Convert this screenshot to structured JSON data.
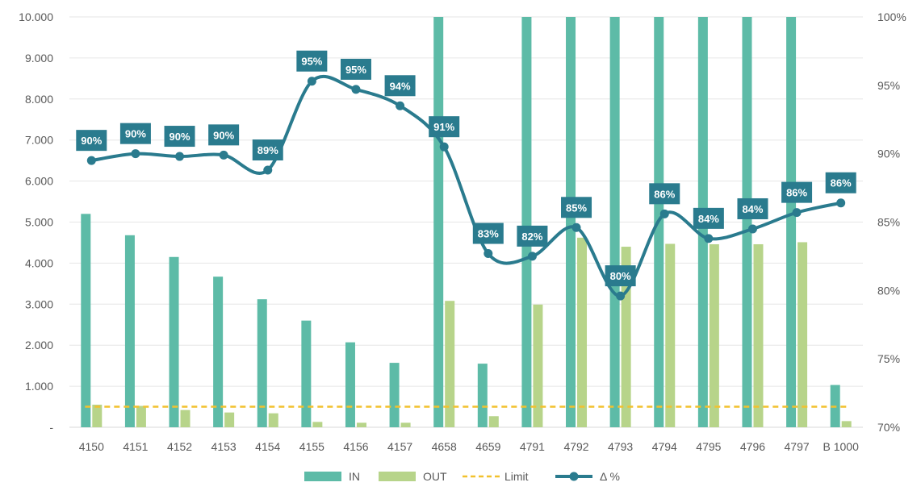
{
  "chart_data": {
    "type": "bar",
    "categories": [
      "4150",
      "4151",
      "4152",
      "4153",
      "4154",
      "4155",
      "4156",
      "4157",
      "4658",
      "4659",
      "4791",
      "4792",
      "4793",
      "4794",
      "4795",
      "4796",
      "4797",
      "B 1000"
    ],
    "series": [
      {
        "name": "IN",
        "type": "bar",
        "axis": "left",
        "color": "#5DBBA7",
        "values": [
          5200,
          4680,
          4150,
          3670,
          3120,
          2600,
          2070,
          1570,
          10000,
          1550,
          10000,
          10000,
          10000,
          10000,
          10000,
          10000,
          10000,
          1030
        ]
      },
      {
        "name": "OUT",
        "type": "bar",
        "axis": "left",
        "color": "#B7D48A",
        "values": [
          550,
          520,
          420,
          360,
          340,
          130,
          110,
          110,
          3080,
          270,
          2990,
          4620,
          4400,
          4470,
          4460,
          4460,
          4510,
          150
        ]
      },
      {
        "name": "Limit",
        "type": "line",
        "style": "dashed",
        "axis": "left",
        "color": "#F2C12E",
        "values": [
          500,
          500,
          500,
          500,
          500,
          500,
          500,
          500,
          500,
          500,
          500,
          500,
          500,
          500,
          500,
          500,
          500,
          500
        ]
      },
      {
        "name": "Δ %",
        "type": "line",
        "markers": true,
        "axis": "right",
        "color": "#2A7B8E",
        "values": [
          89.5,
          90.0,
          89.8,
          89.9,
          88.8,
          95.3,
          94.7,
          93.5,
          90.5,
          82.7,
          82.5,
          84.6,
          79.6,
          85.6,
          83.8,
          84.5,
          85.7,
          86.4
        ],
        "labels": [
          "90%",
          "90%",
          "90%",
          "90%",
          "89%",
          "95%",
          "95%",
          "94%",
          "91%",
          "83%",
          "82%",
          "85%",
          "80%",
          "86%",
          "84%",
          "84%",
          "86%",
          "86%"
        ]
      }
    ],
    "y_left": {
      "ylim": [
        0,
        10000
      ],
      "ticks": [
        "-",
        "1.000",
        "2.000",
        "3.000",
        "4.000",
        "5.000",
        "6.000",
        "7.000",
        "8.000",
        "9.000",
        "10.000"
      ]
    },
    "y_right": {
      "ylim": [
        70,
        100
      ],
      "ticks": [
        "70%",
        "75%",
        "80%",
        "85%",
        "90%",
        "95%",
        "100%"
      ]
    },
    "grid": true,
    "legend": {
      "position": "bottom"
    }
  }
}
